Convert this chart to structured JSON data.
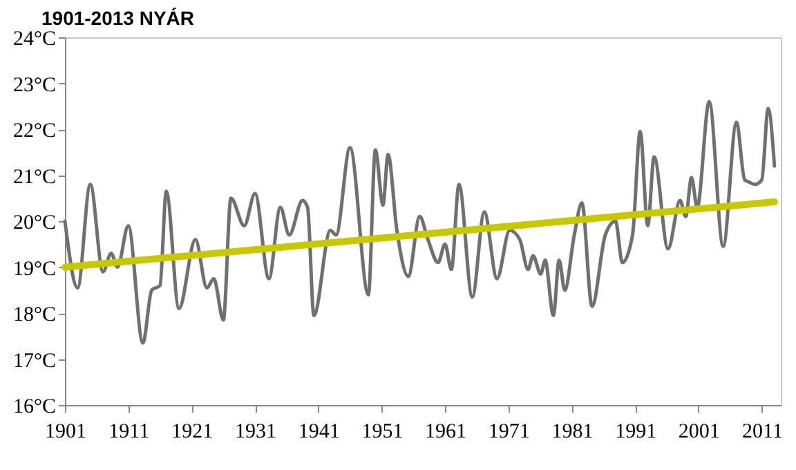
{
  "chart_data": {
    "type": "line",
    "title": "1901-2013 NYÁR",
    "xlim": [
      1901,
      2014
    ],
    "xticks": [
      1901,
      1911,
      1921,
      1931,
      1941,
      1951,
      1961,
      1971,
      1981,
      1991,
      2001,
      2011
    ],
    "ylim": [
      16,
      24
    ],
    "yticks": [
      {
        "value": 16,
        "label": "16°C"
      },
      {
        "value": 17,
        "label": "17°C"
      },
      {
        "value": 18,
        "label": "18°C"
      },
      {
        "value": 19,
        "label": "19°C"
      },
      {
        "value": 20,
        "label": "20°C"
      },
      {
        "value": 21,
        "label": "21°C"
      },
      {
        "value": 22,
        "label": "22°C"
      },
      {
        "value": 23,
        "label": "23°C"
      },
      {
        "value": 24,
        "label": "24°C"
      }
    ],
    "series": [
      {
        "type": "line",
        "color": "#707070",
        "x": [
          1901,
          1903,
          1905,
          1907,
          1908.3,
          1909.3,
          1911,
          1913.3,
          1914.7,
          1916,
          1917,
          1919,
          1921.6,
          1923.4,
          1924.5,
          1926,
          1927.2,
          1929.3,
          1931,
          1933.2,
          1935,
          1936.4,
          1938.5,
          1939.3,
          1940.3,
          1942.9,
          1943.8,
          1946,
          1948.9,
          1950,
          1951.2,
          1952,
          1953.4,
          1955.2,
          1957,
          1958.3,
          1959.9,
          1961,
          1962,
          1963.2,
          1965.3,
          1967.2,
          1969.2,
          1971.2,
          1972.8,
          1974.1,
          1974.9,
          1976.1,
          1976.8,
          1978.1,
          1979,
          1979.9,
          1981.4,
          1982.6,
          1984.2,
          1986.3,
          1987.9,
          1989,
          1990.6,
          1991.8,
          1993,
          1994,
          1996.2,
          1998.1,
          1999,
          1999.9,
          2000.8,
          2002.7,
          2004.9,
          2007,
          2008.3,
          2009,
          2009.9,
          2011,
          2012,
          2013
        ],
        "values": [
          20.0,
          18.55,
          20.8,
          18.9,
          19.3,
          19.0,
          19.9,
          17.35,
          18.5,
          18.6,
          20.65,
          18.1,
          19.6,
          18.55,
          18.75,
          17.85,
          20.5,
          19.9,
          20.6,
          18.75,
          20.3,
          19.7,
          20.45,
          20.3,
          17.95,
          19.8,
          19.7,
          21.6,
          18.4,
          21.55,
          20.35,
          21.45,
          19.8,
          18.8,
          20.1,
          19.6,
          19.1,
          19.5,
          18.95,
          20.8,
          18.35,
          20.2,
          18.75,
          19.8,
          19.6,
          18.95,
          19.25,
          18.85,
          19.15,
          17.95,
          19.15,
          18.5,
          19.7,
          20.4,
          18.15,
          19.7,
          20.0,
          19.1,
          19.7,
          21.95,
          19.9,
          21.4,
          19.4,
          20.45,
          20.1,
          20.95,
          20.3,
          22.6,
          19.45,
          22.15,
          20.9,
          20.85,
          20.8,
          20.9,
          22.45,
          21.2
        ]
      },
      {
        "type": "line",
        "color": "#c8c800",
        "x": [
          1901,
          2013
        ],
        "values": [
          19.0,
          20.42
        ]
      }
    ]
  }
}
